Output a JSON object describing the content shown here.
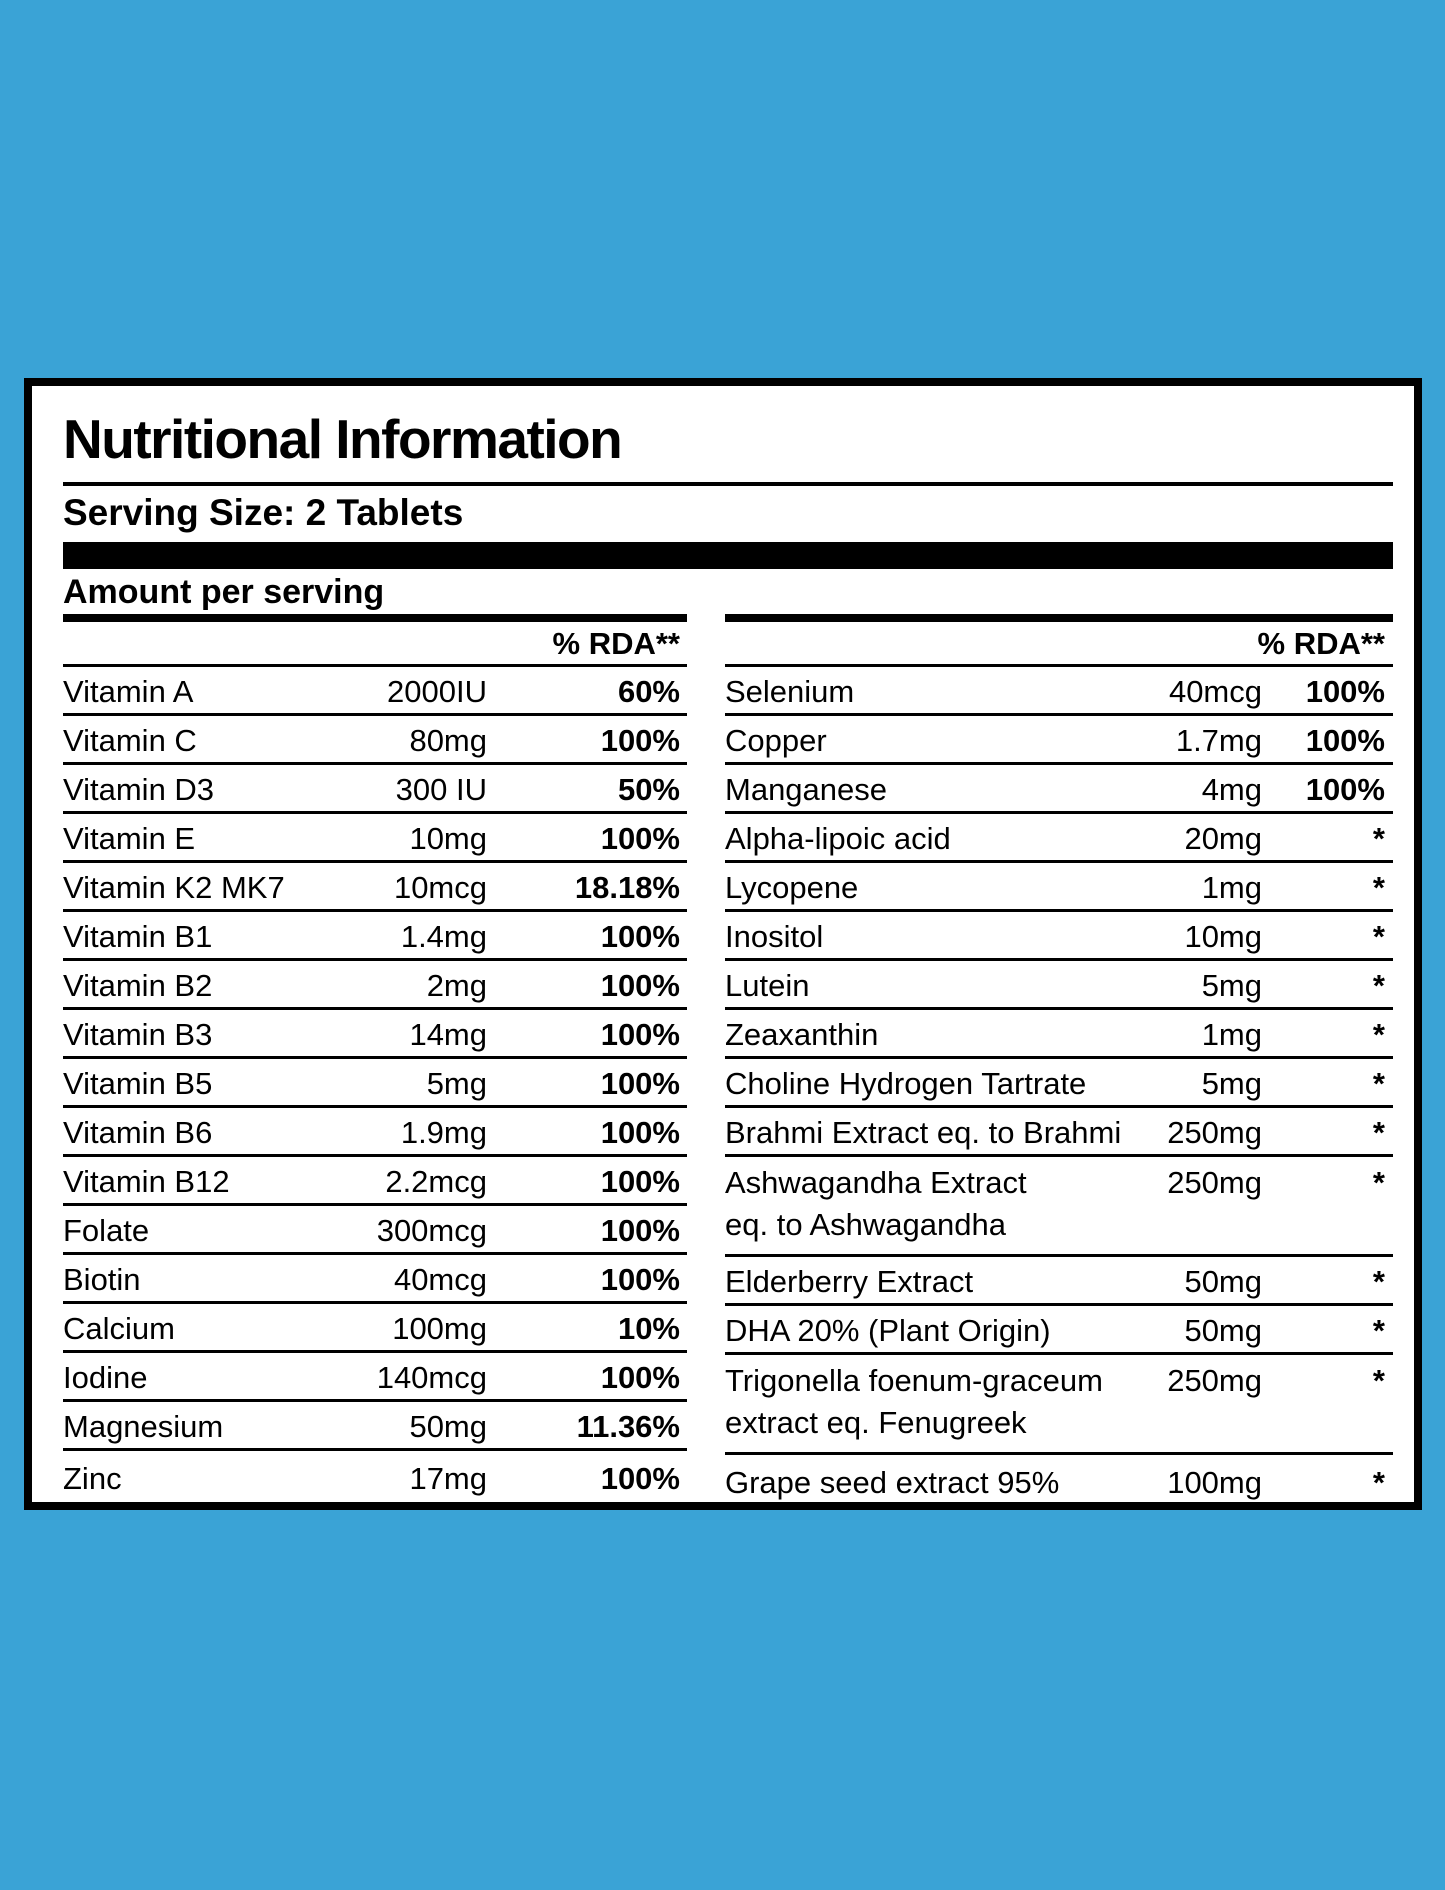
{
  "page": {
    "background_color": "#3aa3d6",
    "panel_border_color": "#000000",
    "panel_background": "#ffffff"
  },
  "label": {
    "title": "Nutritional Information",
    "serving_size": "Serving Size: 2 Tablets",
    "amount_per_serving": "Amount per serving",
    "rda_header": "% RDA**",
    "left_table": {
      "rows": [
        {
          "name": "Vitamin A",
          "amount": "2000IU",
          "rda": "60%"
        },
        {
          "name": "Vitamin C",
          "amount": "80mg",
          "rda": "100%"
        },
        {
          "name": "Vitamin D3",
          "amount": "300 IU",
          "rda": "50%"
        },
        {
          "name": "Vitamin E",
          "amount": "10mg",
          "rda": "100%"
        },
        {
          "name": "Vitamin K2 MK7",
          "amount": "10mcg",
          "rda": "18.18%"
        },
        {
          "name": "Vitamin B1",
          "amount": "1.4mg",
          "rda": "100%"
        },
        {
          "name": "Vitamin B2",
          "amount": "2mg",
          "rda": "100%"
        },
        {
          "name": "Vitamin B3",
          "amount": "14mg",
          "rda": "100%"
        },
        {
          "name": "Vitamin B5",
          "amount": "5mg",
          "rda": "100%"
        },
        {
          "name": "Vitamin B6",
          "amount": "1.9mg",
          "rda": "100%"
        },
        {
          "name": "Vitamin B12",
          "amount": "2.2mcg",
          "rda": "100%"
        },
        {
          "name": "Folate",
          "amount": "300mcg",
          "rda": "100%"
        },
        {
          "name": "Biotin",
          "amount": "40mcg",
          "rda": "100%"
        },
        {
          "name": "Calcium",
          "amount": "100mg",
          "rda": "10%"
        },
        {
          "name": "Iodine",
          "amount": "140mcg",
          "rda": "100%"
        },
        {
          "name": "Magnesium",
          "amount": "50mg",
          "rda": "11.36%"
        },
        {
          "name": "Zinc",
          "amount": "17mg",
          "rda": "100%"
        }
      ]
    },
    "right_table": {
      "rows": [
        {
          "name": "Selenium",
          "amount": "40mcg",
          "rda": "100%"
        },
        {
          "name": "Copper",
          "amount": "1.7mg",
          "rda": "100%"
        },
        {
          "name": "Manganese",
          "amount": "4mg",
          "rda": "100%"
        },
        {
          "name": "Alpha-lipoic acid",
          "amount": "20mg",
          "rda": "*"
        },
        {
          "name": "Lycopene",
          "amount": "1mg",
          "rda": "*"
        },
        {
          "name": "Inositol",
          "amount": "10mg",
          "rda": "*"
        },
        {
          "name": "Lutein",
          "amount": "5mg",
          "rda": "*"
        },
        {
          "name": "Zeaxanthin",
          "amount": "1mg",
          "rda": "*"
        },
        {
          "name": "Choline Hydrogen Tartrate",
          "amount": "5mg",
          "rda": "*"
        },
        {
          "name": "Brahmi Extract eq. to Brahmi",
          "amount": "250mg",
          "rda": "*"
        },
        {
          "name": "Ashwagandha Extract",
          "name2": "eq. to Ashwagandha",
          "amount": "250mg",
          "rda": "*"
        },
        {
          "name": "Elderberry Extract",
          "amount": "50mg",
          "rda": "*"
        },
        {
          "name": "DHA 20% (Plant Origin)",
          "amount": "50mg",
          "rda": "*"
        },
        {
          "name": "Trigonella foenum-graceum",
          "name2": "extract eq. Fenugreek",
          "amount": "250mg",
          "rda": "*"
        },
        {
          "name": "Grape seed extract 95%",
          "amount": "100mg",
          "rda": "*"
        }
      ]
    }
  }
}
